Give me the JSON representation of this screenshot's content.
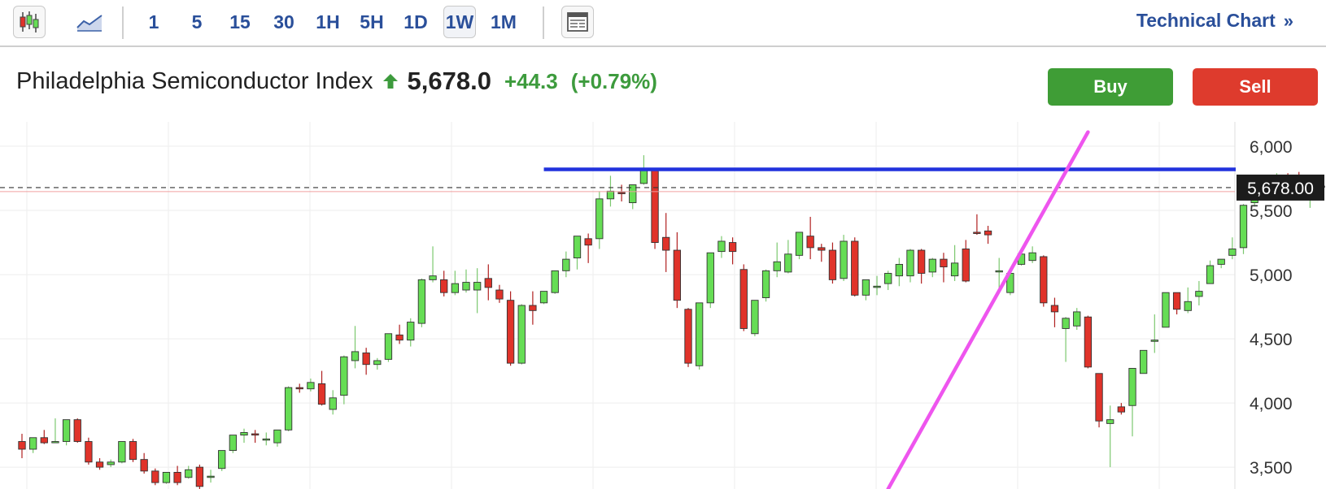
{
  "toolbar": {
    "chart_type_icons": [
      "candlestick-icon",
      "area-chart-icon"
    ],
    "periods": [
      "1",
      "5",
      "15",
      "30",
      "1H",
      "5H",
      "1D",
      "1W",
      "1M"
    ],
    "active_period": "1W",
    "layout_icon": "layout-icon",
    "technical_link": "Technical Chart",
    "technical_link_icon": "»"
  },
  "instrument": {
    "name": "Philadelphia Semiconductor Index",
    "direction": "up",
    "price": "5,678.0",
    "change": "+44.3",
    "change_pct": "(+0.79%)"
  },
  "actions": {
    "buy": "Buy",
    "sell": "Sell"
  },
  "colors": {
    "up": "#66dd55",
    "down": "#e0332a",
    "accent": "#2a4f9a",
    "trend_up": "#ee55ee",
    "resistance": "#2233dd"
  },
  "chart_data": {
    "type": "candlestick",
    "interval": "1W",
    "y_ticks": [
      "6,000",
      "5,500",
      "5,000",
      "4,500",
      "4,000",
      "3,500"
    ],
    "y_tick_values": [
      6000,
      5500,
      5000,
      4500,
      4000,
      3500
    ],
    "ylim": [
      3330,
      6190
    ],
    "current_price_label": "5,678.00",
    "current_price": 5678,
    "resistance_level": 5820,
    "trendline": {
      "from": {
        "index": 78,
        "price": 3330
      },
      "to": {
        "index": 96,
        "price": 6110
      }
    },
    "candles": [
      [
        3700,
        3760,
        3640,
        3570
      ],
      [
        3640,
        3730,
        3730,
        3610
      ],
      [
        3730,
        3790,
        3690,
        3680
      ],
      [
        3690,
        3880,
        3700,
        3690
      ],
      [
        3700,
        3870,
        3870,
        3670
      ],
      [
        3870,
        3880,
        3700,
        3690
      ],
      [
        3700,
        3730,
        3540,
        3520
      ],
      [
        3540,
        3570,
        3500,
        3480
      ],
      [
        3520,
        3560,
        3540,
        3500
      ],
      [
        3540,
        3700,
        3700,
        3530
      ],
      [
        3700,
        3720,
        3560,
        3540
      ],
      [
        3560,
        3610,
        3470,
        3450
      ],
      [
        3470,
        3490,
        3380,
        3360
      ],
      [
        3380,
        3460,
        3460,
        3370
      ],
      [
        3460,
        3510,
        3380,
        3360
      ],
      [
        3420,
        3510,
        3480,
        3410
      ],
      [
        3500,
        3520,
        3350,
        3330
      ],
      [
        3420,
        3480,
        3430,
        3380
      ],
      [
        3490,
        3630,
        3630,
        3470
      ],
      [
        3630,
        3750,
        3750,
        3610
      ],
      [
        3750,
        3800,
        3770,
        3690
      ],
      [
        3760,
        3790,
        3750,
        3690
      ],
      [
        3720,
        3770,
        3720,
        3670
      ],
      [
        3690,
        3780,
        3790,
        3660
      ],
      [
        3790,
        4130,
        4120,
        3780
      ],
      [
        4120,
        4150,
        4110,
        4080
      ],
      [
        4110,
        4190,
        4160,
        4090
      ],
      [
        4150,
        4250,
        3990,
        3980
      ],
      [
        3950,
        4100,
        4040,
        3910
      ],
      [
        4060,
        4370,
        4360,
        3990
      ],
      [
        4330,
        4600,
        4400,
        4270
      ],
      [
        4390,
        4430,
        4300,
        4220
      ],
      [
        4300,
        4350,
        4330,
        4260
      ],
      [
        4340,
        4540,
        4540,
        4320
      ],
      [
        4530,
        4610,
        4490,
        4460
      ],
      [
        4490,
        4660,
        4630,
        4440
      ],
      [
        4620,
        4970,
        4960,
        4590
      ],
      [
        4960,
        5220,
        4990,
        4940
      ],
      [
        4960,
        5030,
        4860,
        4830
      ],
      [
        4860,
        5030,
        4930,
        4840
      ],
      [
        4880,
        5040,
        4940,
        4860
      ],
      [
        4880,
        5050,
        4940,
        4700
      ],
      [
        4970,
        5080,
        4900,
        4800
      ],
      [
        4880,
        4920,
        4810,
        4780
      ],
      [
        4800,
        4870,
        4310,
        4290
      ],
      [
        4310,
        4770,
        4760,
        4300
      ],
      [
        4760,
        4870,
        4720,
        4610
      ],
      [
        4780,
        4850,
        4870,
        4770
      ],
      [
        4860,
        5030,
        5030,
        4850
      ],
      [
        5030,
        5180,
        5120,
        4980
      ],
      [
        5130,
        5300,
        5300,
        5040
      ],
      [
        5280,
        5320,
        5230,
        5090
      ],
      [
        5280,
        5650,
        5590,
        5200
      ],
      [
        5590,
        5770,
        5650,
        5530
      ],
      [
        5640,
        5700,
        5630,
        5570
      ],
      [
        5560,
        5690,
        5700,
        5510
      ],
      [
        5710,
        5930,
        5810,
        5700
      ],
      [
        5810,
        5830,
        5250,
        5200
      ],
      [
        5290,
        5480,
        5190,
        5020
      ],
      [
        5190,
        5330,
        4800,
        4740
      ],
      [
        4730,
        4740,
        4310,
        4280
      ],
      [
        4290,
        4770,
        4780,
        4260
      ],
      [
        4780,
        5160,
        5170,
        4740
      ],
      [
        5180,
        5300,
        5260,
        5130
      ],
      [
        5250,
        5290,
        5180,
        5080
      ],
      [
        5040,
        5080,
        4580,
        4560
      ],
      [
        4540,
        4550,
        4800,
        4520
      ],
      [
        4820,
        5040,
        5030,
        4790
      ],
      [
        5030,
        5250,
        5100,
        4980
      ],
      [
        5020,
        5270,
        5160,
        5010
      ],
      [
        5150,
        5310,
        5330,
        5120
      ],
      [
        5300,
        5450,
        5210,
        5120
      ],
      [
        5210,
        5240,
        5190,
        5100
      ],
      [
        5190,
        5250,
        4960,
        4930
      ],
      [
        4970,
        5310,
        5260,
        4950
      ],
      [
        5260,
        5290,
        4840,
        4830
      ],
      [
        4840,
        4960,
        4960,
        4800
      ],
      [
        4900,
        4990,
        4910,
        4840
      ],
      [
        4930,
        5030,
        5010,
        4880
      ],
      [
        4990,
        5130,
        5080,
        4910
      ],
      [
        4990,
        5200,
        5190,
        4940
      ],
      [
        5190,
        5200,
        5010,
        4930
      ],
      [
        5020,
        5130,
        5120,
        4980
      ],
      [
        5120,
        5170,
        5060,
        4940
      ],
      [
        4990,
        5230,
        5090,
        4950
      ],
      [
        5200,
        5270,
        4950,
        4940
      ],
      [
        5330,
        5470,
        5320,
        5310
      ],
      [
        5340,
        5380,
        5310,
        5240
      ],
      [
        5030,
        5130,
        5030,
        4860
      ],
      [
        4860,
        5050,
        5010,
        4840
      ],
      [
        5080,
        5130,
        5160,
        5070
      ],
      [
        5110,
        5220,
        5170,
        5090
      ],
      [
        5140,
        5150,
        4780,
        4750
      ],
      [
        4760,
        4820,
        4710,
        4590
      ],
      [
        4580,
        4670,
        4660,
        4320
      ],
      [
        4600,
        4740,
        4710,
        4570
      ],
      [
        4670,
        4680,
        4280,
        4270
      ],
      [
        4230,
        4230,
        3860,
        3810
      ],
      [
        3840,
        3980,
        3870,
        3500
      ],
      [
        3970,
        4000,
        3930,
        3910
      ],
      [
        3980,
        4260,
        4270,
        3740
      ],
      [
        4230,
        4400,
        4410,
        4230
      ],
      [
        4480,
        4690,
        4490,
        4390
      ],
      [
        4590,
        4860,
        4860,
        4720
      ],
      [
        4860,
        4820,
        4730,
        4690
      ],
      [
        4720,
        4900,
        4790,
        4700
      ],
      [
        4830,
        4950,
        4870,
        4760
      ],
      [
        4930,
        5110,
        5070,
        4930
      ],
      [
        5080,
        5100,
        5120,
        5050
      ],
      [
        5150,
        5290,
        5200,
        5120
      ],
      [
        5210,
        5550,
        5540,
        5160
      ],
      [
        5560,
        5700,
        5670,
        5530
      ],
      [
        5630,
        5740,
        5710,
        5590
      ],
      [
        5700,
        5790,
        5750,
        5660
      ],
      [
        5760,
        5790,
        5720,
        5620
      ],
      [
        5760,
        5800,
        5590,
        5580
      ],
      [
        5600,
        5730,
        5690,
        5520
      ],
      [
        5690,
        5750,
        5680,
        5600
      ]
    ]
  }
}
